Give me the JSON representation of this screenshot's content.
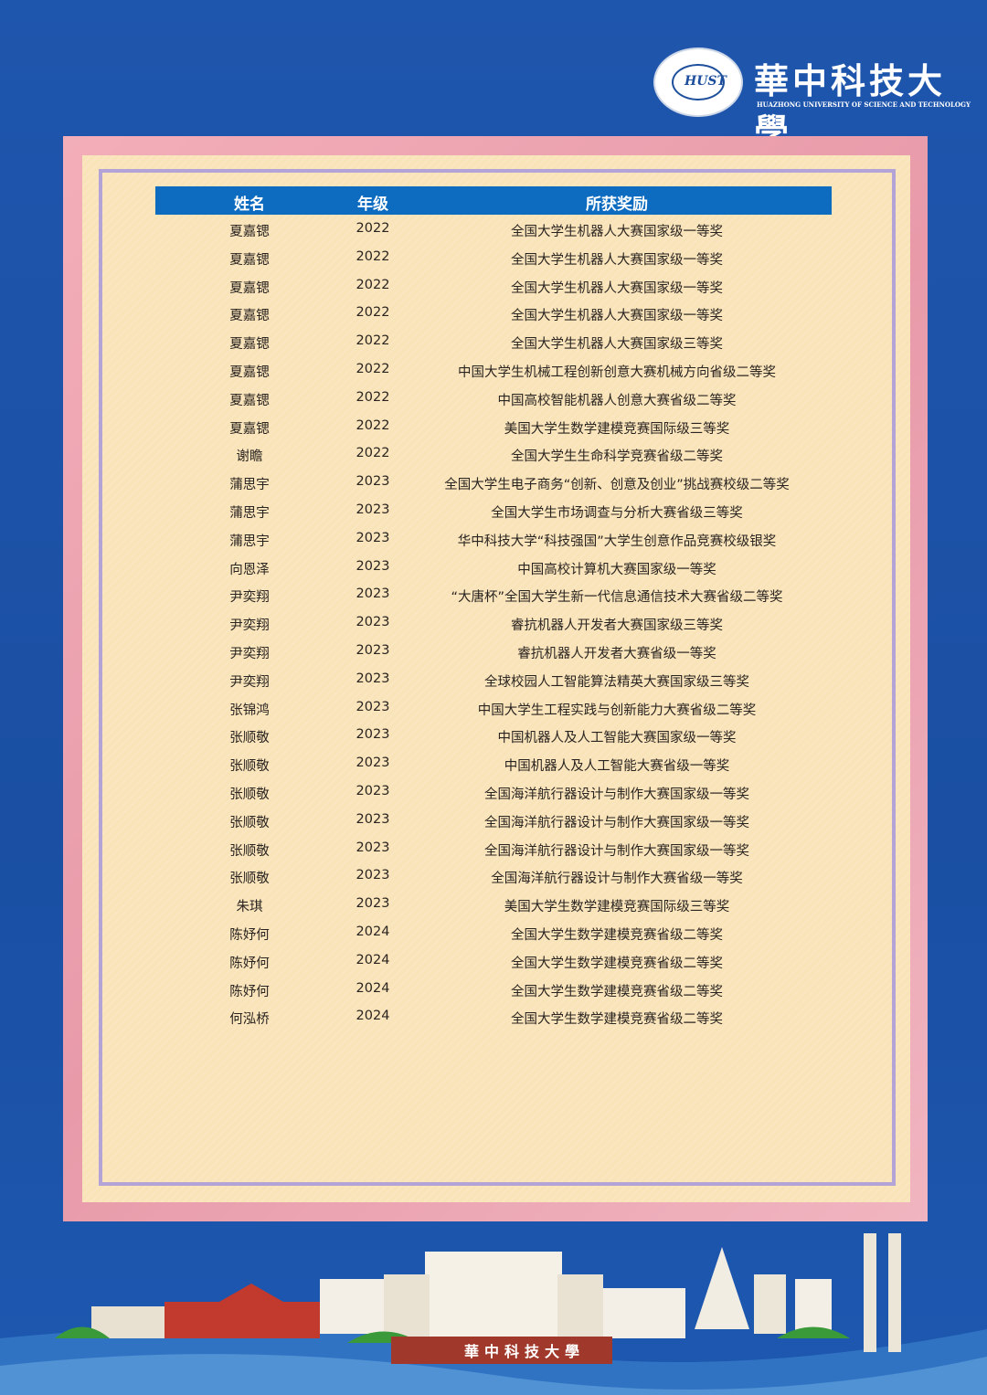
{
  "header": {
    "logo_cn": "華中科技大學",
    "logo_en": "HUAZHONG UNIVERSITY OF SCIENCE AND TECHNOLOGY"
  },
  "table": {
    "columns": [
      "姓名",
      "年级",
      "所获奖励"
    ],
    "rows": [
      [
        "夏嘉锶",
        "2022",
        "全国大学生机器人大赛国家级一等奖"
      ],
      [
        "夏嘉锶",
        "2022",
        "全国大学生机器人大赛国家级一等奖"
      ],
      [
        "夏嘉锶",
        "2022",
        "全国大学生机器人大赛国家级一等奖"
      ],
      [
        "夏嘉锶",
        "2022",
        "全国大学生机器人大赛国家级一等奖"
      ],
      [
        "夏嘉锶",
        "2022",
        "全国大学生机器人大赛国家级三等奖"
      ],
      [
        "夏嘉锶",
        "2022",
        "中国大学生机械工程创新创意大赛机械方向省级二等奖"
      ],
      [
        "夏嘉锶",
        "2022",
        "中国高校智能机器人创意大赛省级二等奖"
      ],
      [
        "夏嘉锶",
        "2022",
        "美国大学生数学建模竞赛国际级三等奖"
      ],
      [
        "谢瞻",
        "2022",
        "全国大学生生命科学竞赛省级二等奖"
      ],
      [
        "蒲思宇",
        "2023",
        "全国大学生电子商务“创新、创意及创业”挑战赛校级二等奖"
      ],
      [
        "蒲思宇",
        "2023",
        "全国大学生市场调查与分析大赛省级三等奖"
      ],
      [
        "蒲思宇",
        "2023",
        "华中科技大学“科技强国”大学生创意作品竞赛校级银奖"
      ],
      [
        "向恩泽",
        "2023",
        "中国高校计算机大赛国家级一等奖"
      ],
      [
        "尹奕翔",
        "2023",
        "“大唐杯”全国大学生新一代信息通信技术大赛省级二等奖"
      ],
      [
        "尹奕翔",
        "2023",
        "睿抗机器人开发者大赛国家级三等奖"
      ],
      [
        "尹奕翔",
        "2023",
        "睿抗机器人开发者大赛省级一等奖"
      ],
      [
        "尹奕翔",
        "2023",
        "全球校园人工智能算法精英大赛国家级三等奖"
      ],
      [
        "张锦鸿",
        "2023",
        "中国大学生工程实践与创新能力大赛省级二等奖"
      ],
      [
        "张顺敬",
        "2023",
        "中国机器人及人工智能大赛国家级一等奖"
      ],
      [
        "张顺敬",
        "2023",
        "中国机器人及人工智能大赛省级一等奖"
      ],
      [
        "张顺敬",
        "2023",
        "全国海洋航行器设计与制作大赛国家级一等奖"
      ],
      [
        "张顺敬",
        "2023",
        "全国海洋航行器设计与制作大赛国家级一等奖"
      ],
      [
        "张顺敬",
        "2023",
        "全国海洋航行器设计与制作大赛国家级一等奖"
      ],
      [
        "张顺敬",
        "2023",
        "全国海洋航行器设计与制作大赛省级一等奖"
      ],
      [
        "朱琪",
        "2023",
        "美国大学生数学建模竞赛国际级三等奖"
      ],
      [
        "陈妤何",
        "2024",
        "全国大学生数学建模竞赛省级二等奖"
      ],
      [
        "陈妤何",
        "2024",
        "全国大学生数学建模竞赛省级二等奖"
      ],
      [
        "陈妤何",
        "2024",
        "全国大学生数学建模竞赛省级二等奖"
      ],
      [
        "何泓桥",
        "2024",
        "全国大学生数学建模竞赛省级二等奖"
      ]
    ]
  },
  "footer": {
    "banner_cn": "華中科技大學"
  },
  "colors": {
    "background": "#1f56ad",
    "table_header": "#0e6cc0",
    "frame_pink": "#eca3b1",
    "frame_cream": "#f9e3b8"
  }
}
